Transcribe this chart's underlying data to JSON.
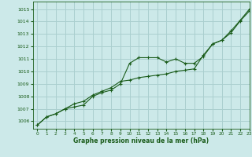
{
  "title": "",
  "xlabel": "Graphe pression niveau de la mer (hPa)",
  "xlim": [
    -0.5,
    23
  ],
  "ylim": [
    1005.4,
    1015.6
  ],
  "yticks": [
    1006,
    1007,
    1008,
    1009,
    1010,
    1011,
    1012,
    1013,
    1014,
    1015
  ],
  "xticks": [
    0,
    1,
    2,
    3,
    4,
    5,
    6,
    7,
    8,
    9,
    10,
    11,
    12,
    13,
    14,
    15,
    16,
    17,
    18,
    19,
    20,
    21,
    22,
    23
  ],
  "bg_color": "#cce9e9",
  "grid_color": "#aacfcf",
  "line_color": "#1a5c1a",
  "line1_x": [
    0,
    1,
    2,
    3,
    4,
    5,
    6,
    7,
    8,
    9,
    10,
    11,
    12,
    13,
    14,
    15,
    16,
    17,
    18,
    19,
    20,
    21,
    22,
    23
  ],
  "line1_y": [
    1005.7,
    1006.35,
    1006.6,
    1007.0,
    1007.15,
    1007.3,
    1008.0,
    1008.3,
    1008.5,
    1009.0,
    1010.65,
    1011.1,
    1011.1,
    1011.1,
    1010.75,
    1011.0,
    1010.65,
    1010.65,
    1011.2,
    1012.2,
    1012.5,
    1013.25,
    1014.1,
    1015.0
  ],
  "line2_x": [
    0,
    1,
    2,
    3,
    4,
    5,
    6,
    7,
    8,
    9,
    10,
    11,
    12,
    13,
    14,
    15,
    16,
    17,
    18,
    19,
    20,
    21,
    22,
    23
  ],
  "line2_y": [
    1005.7,
    1006.35,
    1006.6,
    1007.0,
    1007.4,
    1007.6,
    1008.1,
    1008.4,
    1008.7,
    1009.2,
    1009.3,
    1009.5,
    1009.6,
    1009.7,
    1009.8,
    1010.0,
    1010.1,
    1010.2,
    1011.3,
    1012.2,
    1012.5,
    1013.1,
    1014.05,
    1014.85
  ]
}
